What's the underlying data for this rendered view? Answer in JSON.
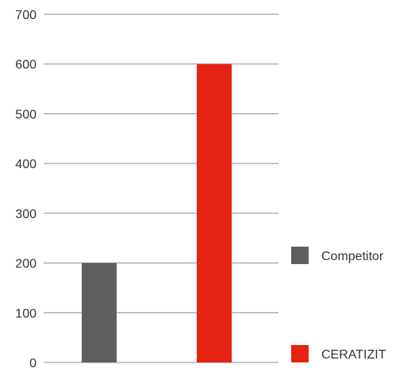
{
  "chart_data": {
    "type": "bar",
    "categories": [
      "Competitor",
      "CERATIZIT"
    ],
    "values": [
      200,
      600
    ],
    "series": [
      {
        "name": "Competitor",
        "values": [
          200,
          null
        ],
        "color": "#5f5f5f"
      },
      {
        "name": "CERATIZIT",
        "values": [
          null,
          600
        ],
        "color": "#e42313"
      }
    ],
    "title": "",
    "xlabel": "",
    "ylabel": "",
    "ylim": [
      0,
      700
    ],
    "yticks": [
      "0",
      "100",
      "200",
      "300",
      "400",
      "500",
      "600",
      "700"
    ],
    "grid": true,
    "legend_position": "right"
  }
}
